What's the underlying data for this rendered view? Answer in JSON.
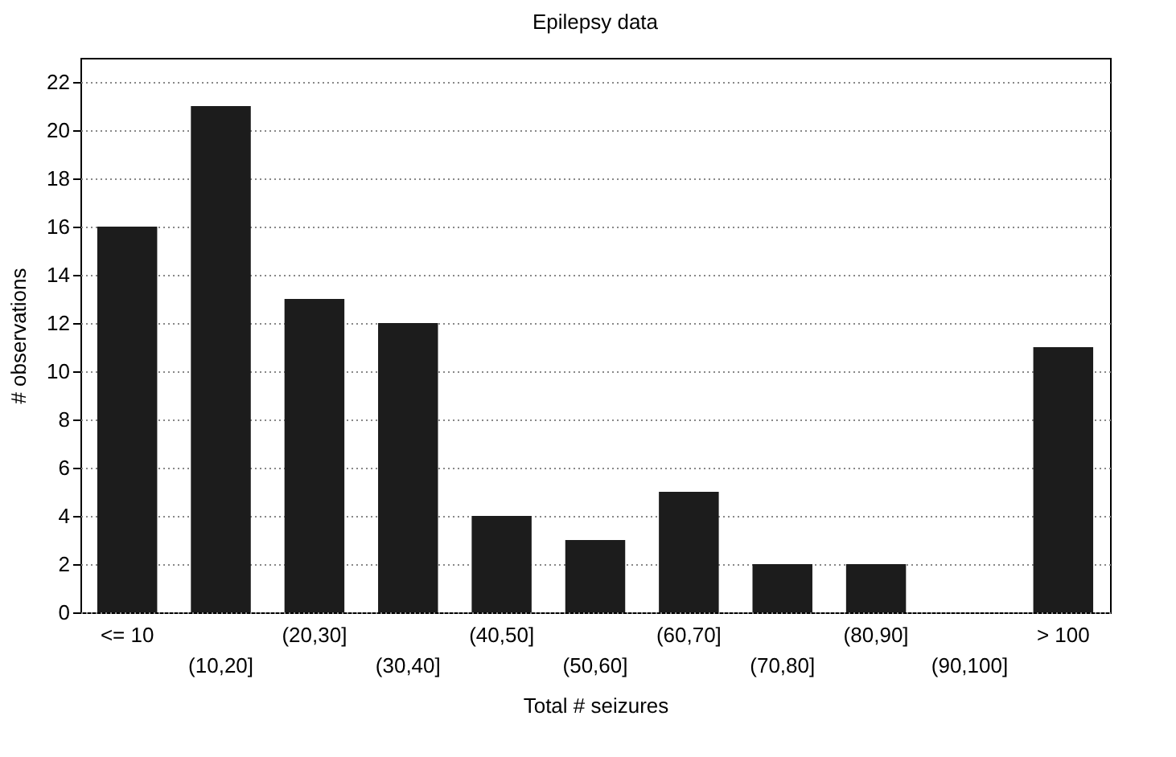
{
  "chart_data": {
    "type": "bar",
    "title": "Epilepsy data",
    "xlabel": "Total # seizures",
    "ylabel": "# observations",
    "categories": [
      "<= 10",
      "(10,20]",
      "(20,30]",
      "(30,40]",
      "(40,50]",
      "(50,60]",
      "(60,70]",
      "(70,80]",
      "(80,90]",
      "(90,100]",
      "> 100"
    ],
    "values": [
      16,
      21,
      13,
      12,
      4,
      3,
      5,
      2,
      2,
      0,
      11
    ],
    "color": "#1c1c1c",
    "ylim": [
      0,
      23
    ],
    "yticks": [
      0,
      2,
      4,
      6,
      8,
      10,
      12,
      14,
      16,
      18,
      20,
      22
    ],
    "grid": "y"
  }
}
